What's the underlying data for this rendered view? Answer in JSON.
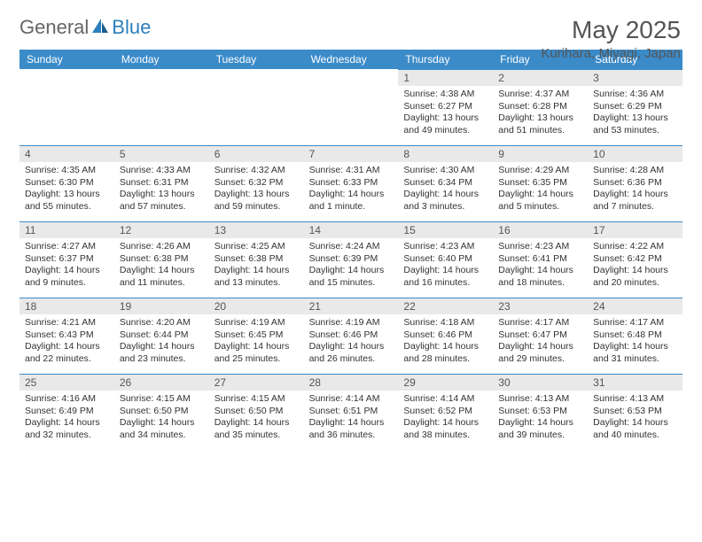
{
  "brand": {
    "left": "General",
    "right": "Blue"
  },
  "title": "May 2025",
  "location": "Kurihara, Miyagi, Japan",
  "colors": {
    "header_bg": "#3b8bc9",
    "band_bg": "#e9e9e9",
    "rule": "#3b8bc9",
    "text": "#333333"
  },
  "weekdays": [
    "Sunday",
    "Monday",
    "Tuesday",
    "Wednesday",
    "Thursday",
    "Friday",
    "Saturday"
  ],
  "weeks": [
    [
      null,
      null,
      null,
      null,
      {
        "d": "1",
        "sr": "4:38 AM",
        "ss": "6:27 PM",
        "dl": "13 hours and 49 minutes."
      },
      {
        "d": "2",
        "sr": "4:37 AM",
        "ss": "6:28 PM",
        "dl": "13 hours and 51 minutes."
      },
      {
        "d": "3",
        "sr": "4:36 AM",
        "ss": "6:29 PM",
        "dl": "13 hours and 53 minutes."
      }
    ],
    [
      {
        "d": "4",
        "sr": "4:35 AM",
        "ss": "6:30 PM",
        "dl": "13 hours and 55 minutes."
      },
      {
        "d": "5",
        "sr": "4:33 AM",
        "ss": "6:31 PM",
        "dl": "13 hours and 57 minutes."
      },
      {
        "d": "6",
        "sr": "4:32 AM",
        "ss": "6:32 PM",
        "dl": "13 hours and 59 minutes."
      },
      {
        "d": "7",
        "sr": "4:31 AM",
        "ss": "6:33 PM",
        "dl": "14 hours and 1 minute."
      },
      {
        "d": "8",
        "sr": "4:30 AM",
        "ss": "6:34 PM",
        "dl": "14 hours and 3 minutes."
      },
      {
        "d": "9",
        "sr": "4:29 AM",
        "ss": "6:35 PM",
        "dl": "14 hours and 5 minutes."
      },
      {
        "d": "10",
        "sr": "4:28 AM",
        "ss": "6:36 PM",
        "dl": "14 hours and 7 minutes."
      }
    ],
    [
      {
        "d": "11",
        "sr": "4:27 AM",
        "ss": "6:37 PM",
        "dl": "14 hours and 9 minutes."
      },
      {
        "d": "12",
        "sr": "4:26 AM",
        "ss": "6:38 PM",
        "dl": "14 hours and 11 minutes."
      },
      {
        "d": "13",
        "sr": "4:25 AM",
        "ss": "6:38 PM",
        "dl": "14 hours and 13 minutes."
      },
      {
        "d": "14",
        "sr": "4:24 AM",
        "ss": "6:39 PM",
        "dl": "14 hours and 15 minutes."
      },
      {
        "d": "15",
        "sr": "4:23 AM",
        "ss": "6:40 PM",
        "dl": "14 hours and 16 minutes."
      },
      {
        "d": "16",
        "sr": "4:23 AM",
        "ss": "6:41 PM",
        "dl": "14 hours and 18 minutes."
      },
      {
        "d": "17",
        "sr": "4:22 AM",
        "ss": "6:42 PM",
        "dl": "14 hours and 20 minutes."
      }
    ],
    [
      {
        "d": "18",
        "sr": "4:21 AM",
        "ss": "6:43 PM",
        "dl": "14 hours and 22 minutes."
      },
      {
        "d": "19",
        "sr": "4:20 AM",
        "ss": "6:44 PM",
        "dl": "14 hours and 23 minutes."
      },
      {
        "d": "20",
        "sr": "4:19 AM",
        "ss": "6:45 PM",
        "dl": "14 hours and 25 minutes."
      },
      {
        "d": "21",
        "sr": "4:19 AM",
        "ss": "6:46 PM",
        "dl": "14 hours and 26 minutes."
      },
      {
        "d": "22",
        "sr": "4:18 AM",
        "ss": "6:46 PM",
        "dl": "14 hours and 28 minutes."
      },
      {
        "d": "23",
        "sr": "4:17 AM",
        "ss": "6:47 PM",
        "dl": "14 hours and 29 minutes."
      },
      {
        "d": "24",
        "sr": "4:17 AM",
        "ss": "6:48 PM",
        "dl": "14 hours and 31 minutes."
      }
    ],
    [
      {
        "d": "25",
        "sr": "4:16 AM",
        "ss": "6:49 PM",
        "dl": "14 hours and 32 minutes."
      },
      {
        "d": "26",
        "sr": "4:15 AM",
        "ss": "6:50 PM",
        "dl": "14 hours and 34 minutes."
      },
      {
        "d": "27",
        "sr": "4:15 AM",
        "ss": "6:50 PM",
        "dl": "14 hours and 35 minutes."
      },
      {
        "d": "28",
        "sr": "4:14 AM",
        "ss": "6:51 PM",
        "dl": "14 hours and 36 minutes."
      },
      {
        "d": "29",
        "sr": "4:14 AM",
        "ss": "6:52 PM",
        "dl": "14 hours and 38 minutes."
      },
      {
        "d": "30",
        "sr": "4:13 AM",
        "ss": "6:53 PM",
        "dl": "14 hours and 39 minutes."
      },
      {
        "d": "31",
        "sr": "4:13 AM",
        "ss": "6:53 PM",
        "dl": "14 hours and 40 minutes."
      }
    ]
  ],
  "labels": {
    "sunrise": "Sunrise:",
    "sunset": "Sunset:",
    "daylight": "Daylight:"
  }
}
